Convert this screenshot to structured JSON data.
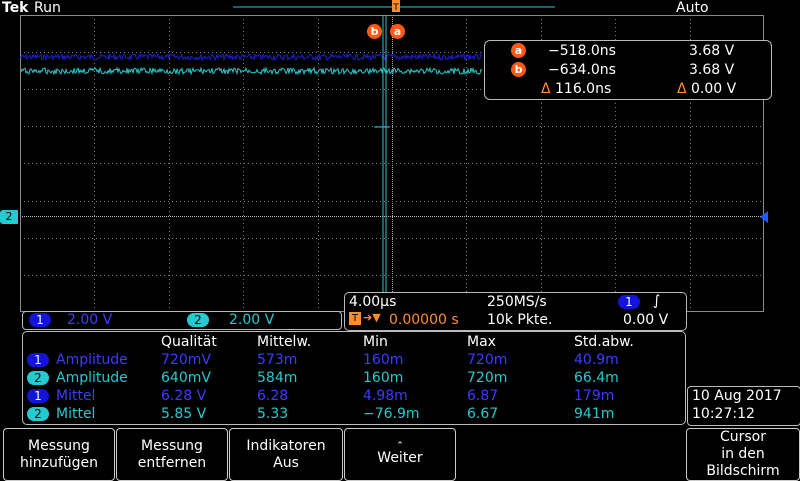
{
  "topbar": {
    "brand": "Tek",
    "run_state": "Run",
    "trigger_mode": "Auto"
  },
  "colors": {
    "ch1": "#1414d8",
    "ch2": "#26c9cf",
    "cursor": "#ff5a14",
    "trigger": "#ff8c2a",
    "grid": "#7a7a7a"
  },
  "markers": {
    "a": "a",
    "b": "b"
  },
  "channel_marker": {
    "ch2": "2"
  },
  "cursor_readout": {
    "rows": [
      {
        "marker": "a",
        "time": "−518.0ns",
        "volt": "3.68 V"
      },
      {
        "marker": "b",
        "time": "−634.0ns",
        "volt": "3.68 V"
      },
      {
        "marker": "Δ",
        "time": "116.0ns",
        "volt": "0.00 V"
      }
    ]
  },
  "horizontal": {
    "time_div": "4.00µs",
    "sample_rate": "250MS/s",
    "trigger_channel": "1",
    "trigger_slope": "∫",
    "trigger_pos": "0.00000 s",
    "record_length": "10k Pkte.",
    "trigger_level": "0.00 V"
  },
  "channel_scale": {
    "ch1_label": "1",
    "ch1_value": "2.00 V",
    "ch2_label": "2",
    "ch2_value": "2.00 V"
  },
  "measurements": {
    "headers": [
      "Qualität",
      "Mittelw.",
      "Min",
      "Max",
      "Std.abw."
    ],
    "rows": [
      {
        "ch": "1",
        "name": "Amplitude",
        "values": [
          "720mV",
          "573m",
          "160m",
          "720m",
          "40.9m"
        ]
      },
      {
        "ch": "2",
        "name": "Amplitude",
        "values": [
          "640mV",
          "584m",
          "160m",
          "720m",
          "66.4m"
        ]
      },
      {
        "ch": "1",
        "name": "Mittel",
        "values": [
          "6.28 V",
          "6.28",
          "4.98m",
          "6.87",
          "179m"
        ]
      },
      {
        "ch": "2",
        "name": "Mittel",
        "values": [
          "5.85 V",
          "5.33",
          "−76.9m",
          "6.67",
          "941m"
        ]
      }
    ]
  },
  "datetime": {
    "date": "10 Aug 2017",
    "time": "10:27:12"
  },
  "softkeys": {
    "add": [
      "Messung",
      "hinzufügen"
    ],
    "remove": [
      "Messung",
      "entfernen"
    ],
    "indicators": [
      "Indikatoren",
      "Aus"
    ],
    "more": "Weiter",
    "cursor": [
      "Cursor",
      "in den",
      "Bildschirm"
    ]
  }
}
